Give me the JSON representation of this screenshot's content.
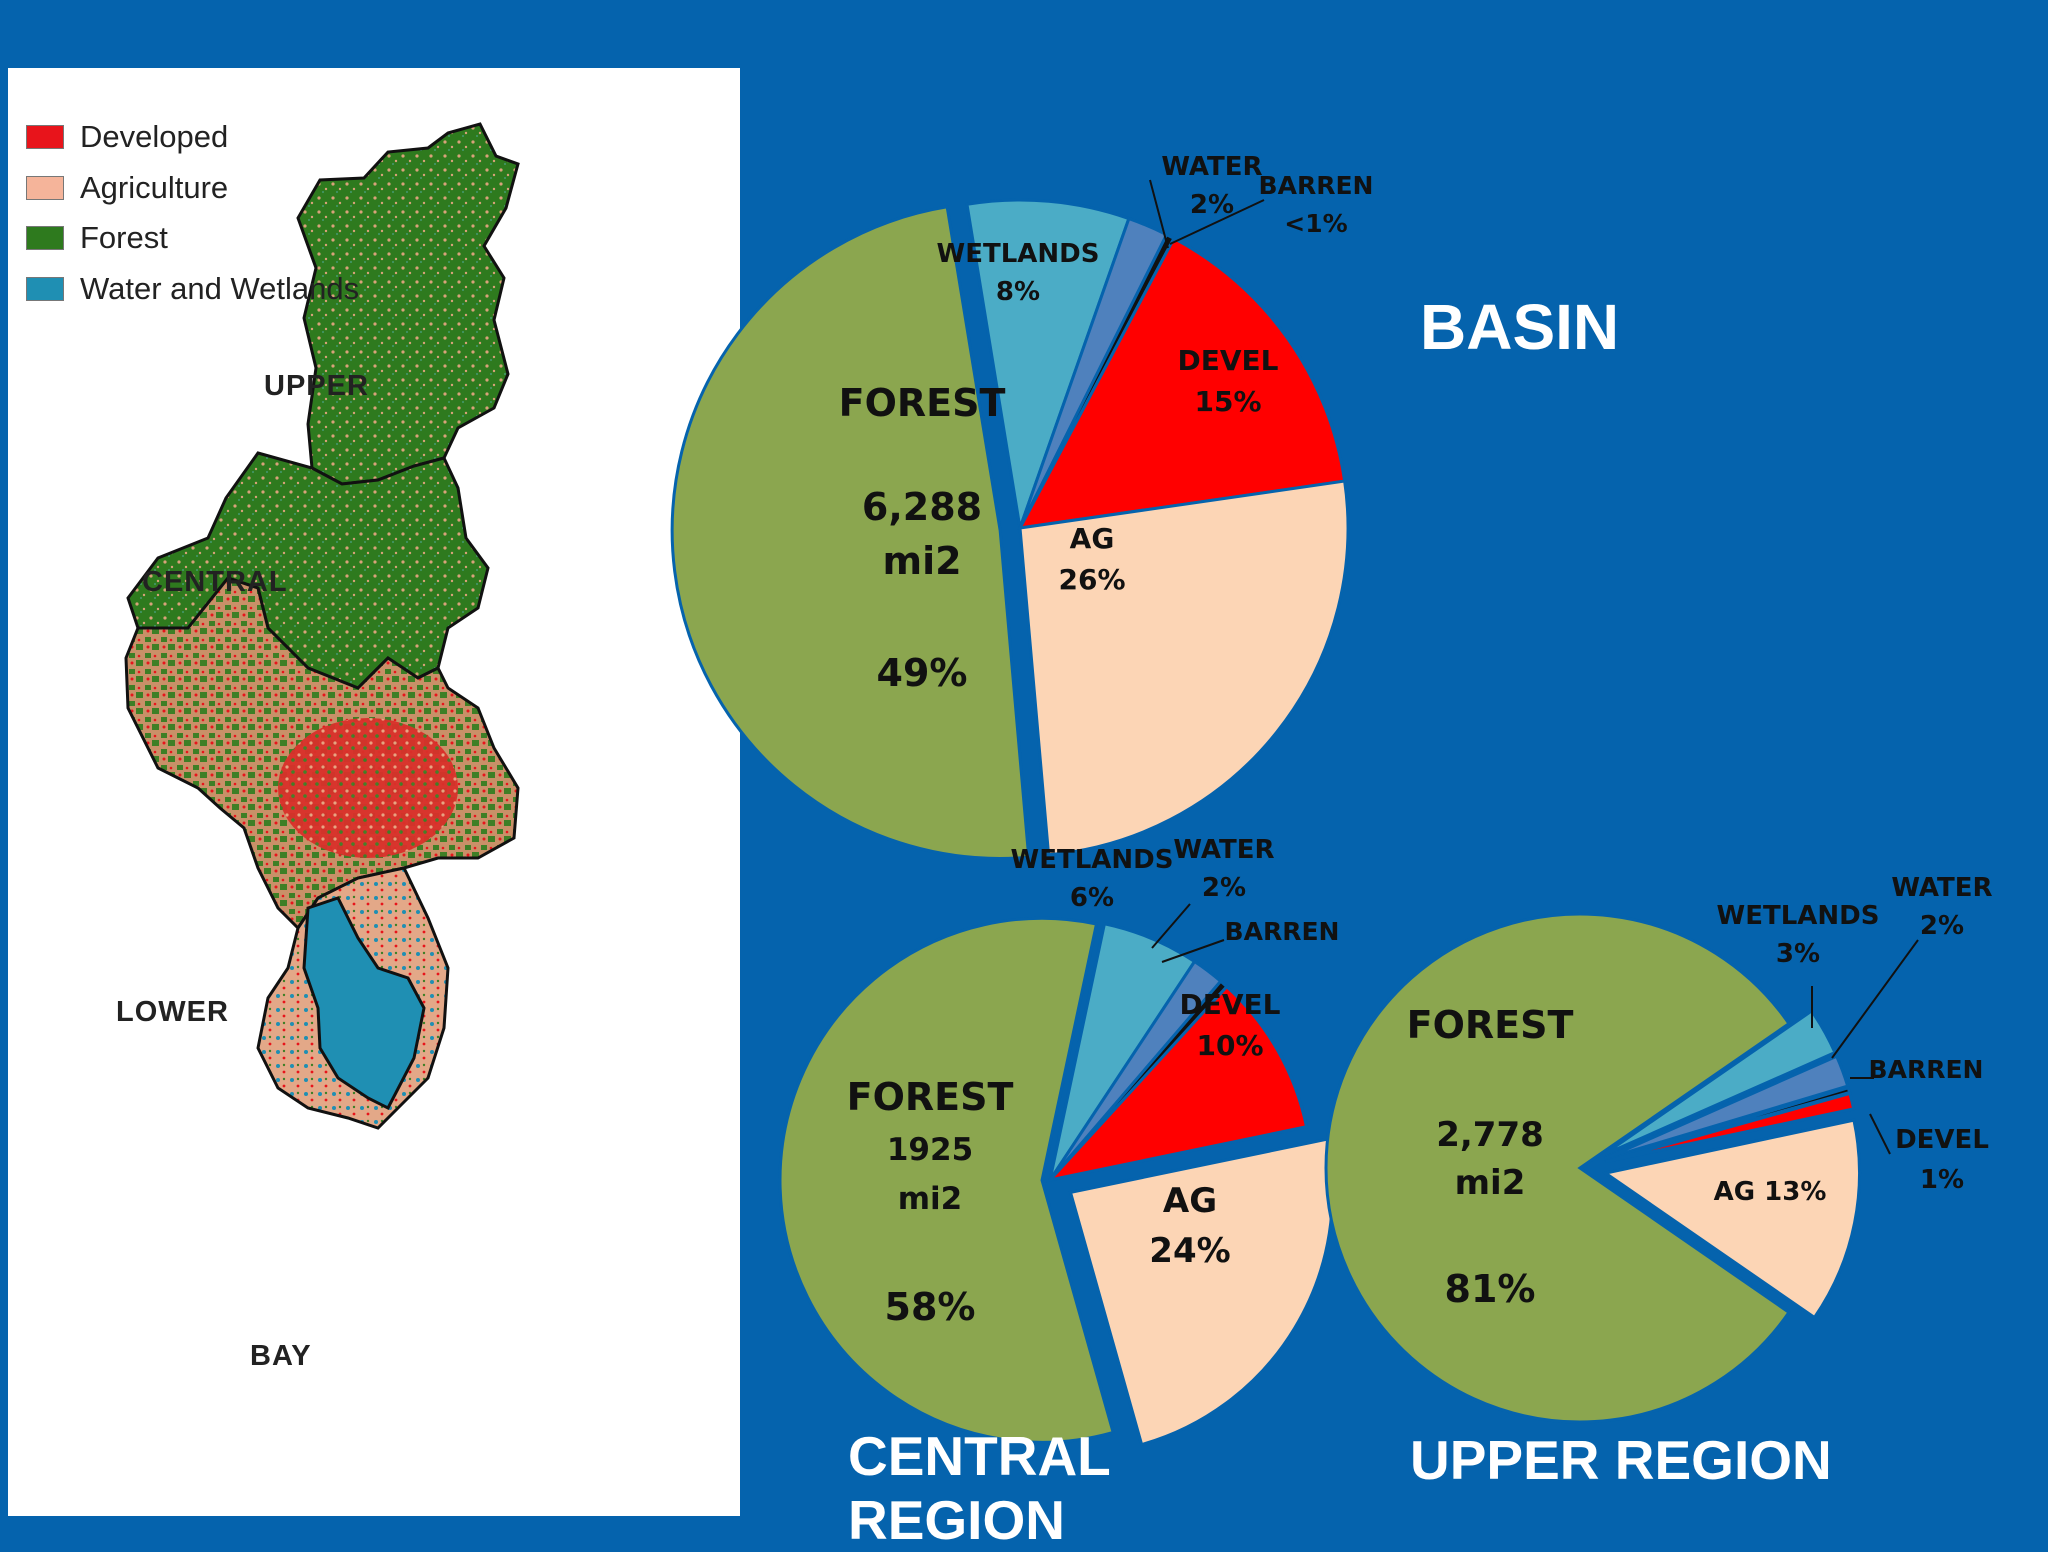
{
  "map": {
    "legend": [
      {
        "label": "Developed",
        "color": "#E8141B"
      },
      {
        "label": "Agriculture",
        "color": "#F5B49A"
      },
      {
        "label": "Forest",
        "color": "#2E7A1E"
      },
      {
        "label": "Water and Wetlands",
        "color": "#1F8FB3"
      }
    ],
    "regions": {
      "upper": "UPPER",
      "central": "CENTRAL",
      "lower": "LOWER",
      "bay": "BAY"
    }
  },
  "titles": {
    "basin": "BASIN",
    "central_line1": "CENTRAL",
    "central_line2": "REGION",
    "upper": "UPPER REGION"
  },
  "colors": {
    "forest": "#8BA64F",
    "wetlands": "#4BACC6",
    "water": "#4F81BD",
    "barren": "#111111",
    "devel": "#FF0000",
    "ag": "#FCD5B5",
    "background": "#0563AD"
  },
  "chart_data": [
    {
      "type": "pie",
      "title": "BASIN",
      "slices": [
        {
          "label": "FOREST",
          "value": 49,
          "display": [
            "FOREST",
            "6,288",
            "mi2",
            "49%"
          ]
        },
        {
          "label": "WETLANDS",
          "value": 8,
          "display": [
            "WETLANDS",
            "8%"
          ]
        },
        {
          "label": "WATER",
          "value": 2,
          "display": [
            "WATER",
            "2%"
          ]
        },
        {
          "label": "BARREN",
          "value": 0.4,
          "display": [
            "BARREN",
            "<1%"
          ]
        },
        {
          "label": "DEVEL",
          "value": 15,
          "display": [
            "DEVEL",
            "15%"
          ]
        },
        {
          "label": "AG",
          "value": 26,
          "display": [
            "AG",
            "26%"
          ]
        }
      ]
    },
    {
      "type": "pie",
      "title": "CENTRAL REGION",
      "slices": [
        {
          "label": "FOREST",
          "value": 58,
          "display": [
            "FOREST",
            "1925",
            "mi2",
            "58%"
          ]
        },
        {
          "label": "WETLANDS",
          "value": 6,
          "display": [
            "WETLANDS",
            "6%"
          ]
        },
        {
          "label": "WATER",
          "value": 2,
          "display": [
            "WATER",
            "2%"
          ]
        },
        {
          "label": "BARREN",
          "value": 0.5,
          "display": [
            "BARREN"
          ]
        },
        {
          "label": "DEVEL",
          "value": 10,
          "display": [
            "DEVEL",
            "10%"
          ]
        },
        {
          "label": "AG",
          "value": 24,
          "display": [
            "AG",
            "24%"
          ]
        }
      ]
    },
    {
      "type": "pie",
      "title": "UPPER REGION",
      "slices": [
        {
          "label": "FOREST",
          "value": 81,
          "display": [
            "FOREST",
            "2,778",
            "mi2",
            "81%"
          ]
        },
        {
          "label": "WETLANDS",
          "value": 3,
          "display": [
            "WETLANDS",
            "3%"
          ]
        },
        {
          "label": "WATER",
          "value": 2,
          "display": [
            "WATER",
            "2%"
          ]
        },
        {
          "label": "BARREN",
          "value": 0.3,
          "display": [
            "BARREN"
          ]
        },
        {
          "label": "DEVEL",
          "value": 1,
          "display": [
            "DEVEL",
            "1%"
          ]
        },
        {
          "label": "AG",
          "value": 13,
          "display": [
            "AG 13%"
          ]
        }
      ]
    }
  ]
}
